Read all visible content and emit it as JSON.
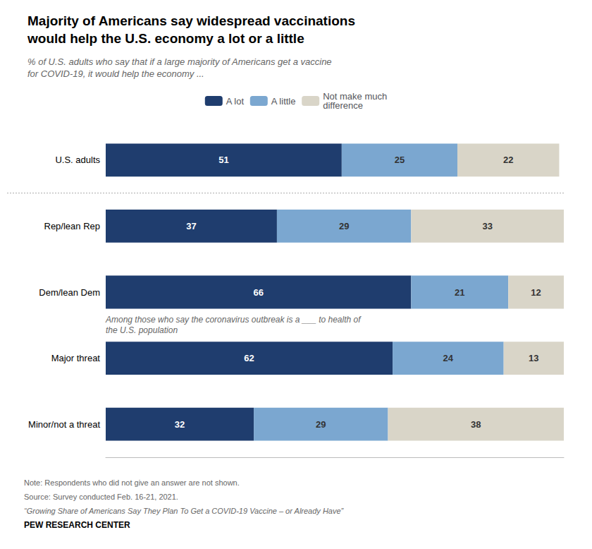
{
  "chart_data": {
    "type": "bar",
    "orientation": "horizontal",
    "stacked": true,
    "title": "Majority of Americans say widespread vaccinations\nwould help the U.S. economy a lot or a little",
    "subtitle": "% of U.S. adults who say that if a large majority of Americans get a vaccine\nfor COVID-19, it would help the economy ...",
    "categories": [
      "U.S. adults",
      "Rep/lean Rep",
      "Dem/lean Dem",
      "Major threat",
      "Minor/not a threat"
    ],
    "series": [
      {
        "name": "A lot",
        "color": "#1f3d6e",
        "values": [
          51,
          37,
          66,
          62,
          32
        ]
      },
      {
        "name": "A little",
        "color": "#7ba7d0",
        "values": [
          25,
          29,
          21,
          24,
          29
        ]
      },
      {
        "name": "Not make much\ndifference",
        "color": "#d9d5c8",
        "values": [
          22,
          33,
          12,
          13,
          38
        ]
      }
    ],
    "xlim": [
      0,
      99
    ],
    "tick_labels": "y",
    "grid": false,
    "legend": "top",
    "data_labels": true,
    "annotation": "Among those who say the coronavirus outbreak is a ___ to health of\nthe U.S. population",
    "notes": [
      "Note: Respondents who did not give an answer are not shown.",
      "Source: Survey conducted Feb. 16-21, 2021.",
      "“Growing Share of Americans Say They Plan To Get a COVID-19 Vaccine – or Already Have”",
      "PEW RESEARCH CENTER"
    ]
  }
}
